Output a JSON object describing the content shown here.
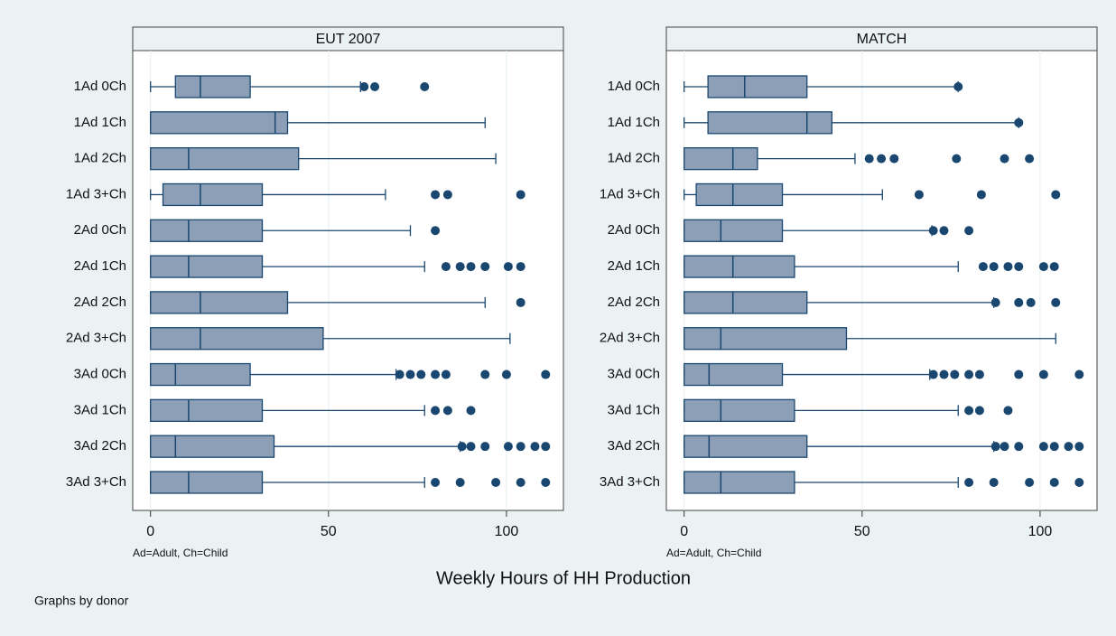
{
  "chart_data": [
    {
      "type": "box",
      "title": "EUT 2007",
      "note": "Ad=Adult, Ch=Child",
      "categories": [
        "1Ad 0Ch",
        "1Ad 1Ch",
        "1Ad 2Ch",
        "1Ad 3+Ch",
        "2Ad 0Ch",
        "2Ad 1Ch",
        "2Ad 2Ch",
        "2Ad 3+Ch",
        "3Ad 0Ch",
        "3Ad 1Ch",
        "3Ad 2Ch",
        "3Ad 3+Ch"
      ],
      "boxes": [
        {
          "min": 0,
          "q1": 7,
          "median": 14,
          "q3": 28,
          "max": 59,
          "outliers": [
            60,
            63,
            77
          ]
        },
        {
          "min": 0,
          "q1": 0,
          "median": 35,
          "q3": 38.5,
          "max": 94,
          "outliers": []
        },
        {
          "min": 0,
          "q1": 0,
          "median": 10.7,
          "q3": 41.6,
          "max": 97,
          "outliers": []
        },
        {
          "min": 0,
          "q1": 3.5,
          "median": 14,
          "q3": 31.4,
          "max": 66,
          "outliers": [
            80,
            83.5,
            104
          ]
        },
        {
          "min": 0,
          "q1": 0,
          "median": 10.7,
          "q3": 31.4,
          "max": 73,
          "outliers": [
            80
          ]
        },
        {
          "min": 0,
          "q1": 0,
          "median": 10.7,
          "q3": 31.4,
          "max": 77,
          "outliers": [
            83,
            87,
            90,
            94,
            100.5,
            104
          ]
        },
        {
          "min": 0,
          "q1": 0,
          "median": 14,
          "q3": 38.5,
          "max": 94,
          "outliers": [
            104
          ]
        },
        {
          "min": 0,
          "q1": 0,
          "median": 14,
          "q3": 48.5,
          "max": 101,
          "outliers": []
        },
        {
          "min": 0,
          "q1": 0,
          "median": 7,
          "q3": 28,
          "max": 69,
          "outliers": [
            70,
            73,
            76,
            80,
            83,
            94,
            100,
            111
          ]
        },
        {
          "min": 0,
          "q1": 0,
          "median": 10.7,
          "q3": 31.4,
          "max": 77,
          "outliers": [
            80,
            83.5,
            90
          ]
        },
        {
          "min": 0,
          "q1": 0,
          "median": 7,
          "q3": 34.7,
          "max": 87,
          "outliers": [
            87.5,
            90,
            94,
            100.5,
            104,
            108,
            111
          ]
        },
        {
          "min": 0,
          "q1": 0,
          "median": 10.7,
          "q3": 31.4,
          "max": 77,
          "outliers": [
            80,
            87,
            97,
            104,
            111
          ]
        }
      ],
      "xlim": [
        -5,
        116
      ],
      "xticks": [
        0,
        50,
        100
      ],
      "grid": true,
      "color": "#8c9fb6"
    },
    {
      "type": "box",
      "title": "MATCH",
      "note": "Ad=Adult, Ch=Child",
      "categories": [
        "1Ad 0Ch",
        "1Ad 1Ch",
        "1Ad 2Ch",
        "1Ad 3+Ch",
        "2Ad 0Ch",
        "2Ad 1Ch",
        "2Ad 2Ch",
        "2Ad 3+Ch",
        "3Ad 0Ch",
        "3Ad 1Ch",
        "3Ad 2Ch",
        "3Ad 3+Ch"
      ],
      "boxes": [
        {
          "min": 0,
          "q1": 6.7,
          "median": 17,
          "q3": 34.5,
          "max": 77,
          "outliers": [
            77
          ]
        },
        {
          "min": 0,
          "q1": 6.7,
          "median": 34.5,
          "q3": 41.5,
          "max": 94,
          "outliers": [
            94
          ]
        },
        {
          "min": 0,
          "q1": 0,
          "median": 13.7,
          "q3": 20.6,
          "max": 48,
          "outliers": [
            52,
            55.4,
            59,
            76.5,
            90,
            97
          ]
        },
        {
          "min": 0,
          "q1": 3.4,
          "median": 13.7,
          "q3": 27.6,
          "max": 55.7,
          "outliers": [
            66,
            83.5,
            104.4
          ]
        },
        {
          "min": 0,
          "q1": 0,
          "median": 10.3,
          "q3": 27.6,
          "max": 69.6,
          "outliers": [
            70,
            73,
            80
          ]
        },
        {
          "min": 0,
          "q1": 0,
          "median": 13.7,
          "q3": 31,
          "max": 77,
          "outliers": [
            84,
            87,
            91,
            94,
            101,
            104
          ]
        },
        {
          "min": 0,
          "q1": 0,
          "median": 13.7,
          "q3": 34.5,
          "max": 87,
          "outliers": [
            87.5,
            94,
            97.4,
            104.4
          ]
        },
        {
          "min": 0,
          "q1": 0,
          "median": 10.3,
          "q3": 45.6,
          "max": 104.4,
          "outliers": []
        },
        {
          "min": 0,
          "q1": 0,
          "median": 7,
          "q3": 27.6,
          "max": 69,
          "outliers": [
            70,
            73,
            76,
            80,
            83,
            94,
            101,
            111
          ]
        },
        {
          "min": 0,
          "q1": 0,
          "median": 10.3,
          "q3": 31,
          "max": 77,
          "outliers": [
            80,
            83,
            91
          ]
        },
        {
          "min": 0,
          "q1": 0,
          "median": 7,
          "q3": 34.5,
          "max": 87,
          "outliers": [
            87.5,
            90,
            94,
            101,
            104,
            108,
            111
          ]
        },
        {
          "min": 0,
          "q1": 0,
          "median": 10.3,
          "q3": 31,
          "max": 77,
          "outliers": [
            80,
            87,
            97,
            104,
            111
          ]
        }
      ],
      "xlim": [
        -5,
        116
      ],
      "xticks": [
        0,
        50,
        100
      ],
      "grid": true,
      "color": "#8c9fb6"
    }
  ],
  "x_label": "Weekly Hours of HH Production",
  "footnote": "Graphs by donor"
}
